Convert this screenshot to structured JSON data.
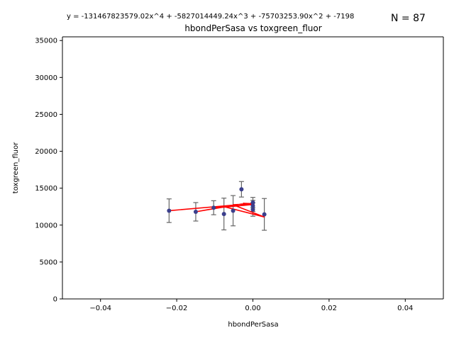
{
  "chart_data": {
    "type": "scatter",
    "title": "hbondPerSasa vs toxgreen_fluor",
    "equation": "y = -131467823579.02x^4 + -5827014449.24x^3 + -75703253.90x^2 + -7198",
    "count_label": "N = 87",
    "xlabel": "hbondPerSasa",
    "ylabel": "toxgreen_fluor",
    "xlim": [
      -0.05,
      0.05
    ],
    "ylim": [
      0,
      35500
    ],
    "x_ticks": [
      -0.04,
      -0.02,
      0.0,
      0.02,
      0.04
    ],
    "x_tick_labels": [
      "−0.04",
      "−0.02",
      "0.00",
      "0.02",
      "0.04"
    ],
    "y_ticks": [
      0,
      5000,
      10000,
      15000,
      20000,
      25000,
      30000,
      35000
    ],
    "y_tick_labels": [
      "0",
      "5000",
      "10000",
      "15000",
      "20000",
      "25000",
      "30000",
      "35000"
    ],
    "grid": false,
    "points": [
      {
        "x": -0.022,
        "y": 11950,
        "err": 1600
      },
      {
        "x": -0.015,
        "y": 11800,
        "err": 1250
      },
      {
        "x": -0.0103,
        "y": 12350,
        "err": 950
      },
      {
        "x": -0.0076,
        "y": 11500,
        "err": 2150
      },
      {
        "x": -0.0052,
        "y": 11950,
        "err": 2050
      },
      {
        "x": -0.003,
        "y": 14850,
        "err": 1050
      },
      {
        "x": 0.0,
        "y": 13050,
        "err": 700
      },
      {
        "x": 0.0,
        "y": 12600,
        "err": 750
      },
      {
        "x": 0.0,
        "y": 12100,
        "err": 900
      },
      {
        "x": 0.003,
        "y": 11450,
        "err": 2150
      }
    ],
    "fit_line": [
      [
        -0.022,
        11950
      ],
      [
        -0.0052,
        12700
      ],
      [
        -0.015,
        11800
      ],
      [
        -0.003,
        12850
      ],
      [
        0.0003,
        12800
      ],
      [
        -0.0103,
        12300
      ],
      [
        -0.0076,
        12500
      ],
      [
        0.003,
        11100
      ],
      [
        -0.0052,
        12750
      ],
      [
        0.0,
        12900
      ],
      [
        -0.0025,
        12950
      ],
      [
        0.0,
        12700
      ]
    ],
    "colors": {
      "points": "#3b3f8c",
      "errorbars": "#666666",
      "fit": "#ff0000",
      "axes": "#000000"
    }
  }
}
